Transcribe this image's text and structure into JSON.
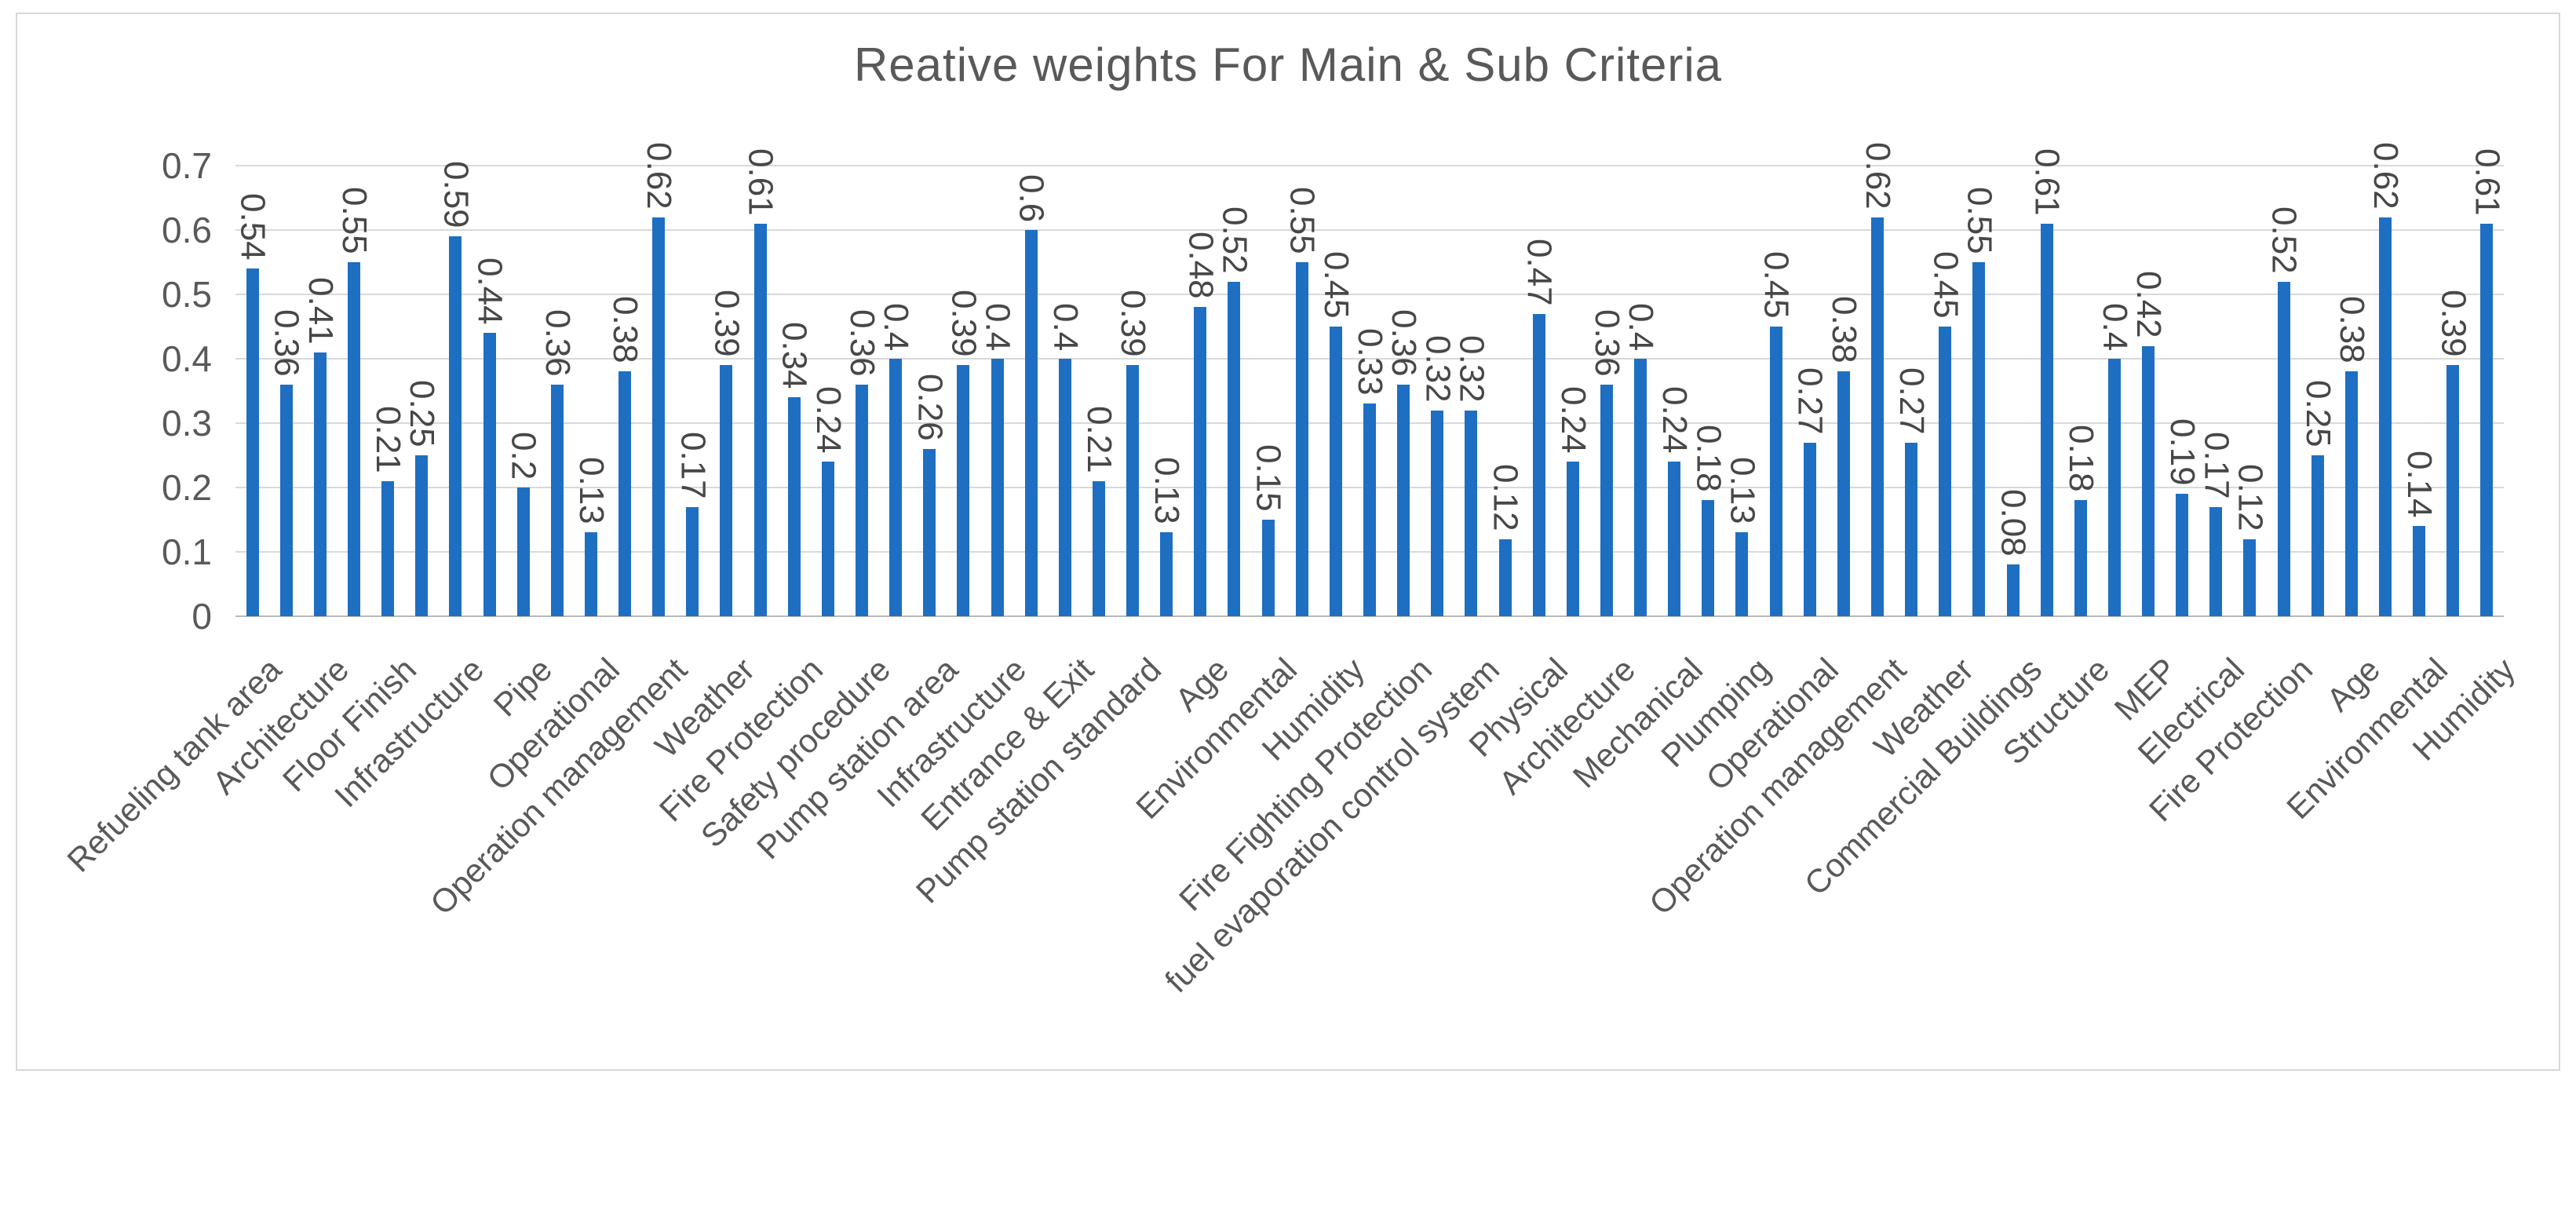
{
  "colors": {
    "bar": "#1e6ec2",
    "grid": "#d9d9d9",
    "axis_line": "#b9b9b9",
    "frame_border": "#d8d8d8",
    "text": "#595959",
    "value_text": "#474747"
  },
  "chart_data": {
    "type": "bar",
    "title": "Reative weights For Main & Sub Criteria",
    "xlabel": "",
    "ylabel": "",
    "ylim": [
      0,
      0.7
    ],
    "ytick_labels": [
      "0",
      "0.1",
      "0.2",
      "0.3",
      "0.4",
      "0.5",
      "0.6",
      "0.7"
    ],
    "grid": true,
    "legend": false,
    "values": [
      0.54,
      0.36,
      0.41,
      0.55,
      0.21,
      0.25,
      0.59,
      0.44,
      0.2,
      0.36,
      0.13,
      0.38,
      0.62,
      0.17,
      0.39,
      0.61,
      0.34,
      0.24,
      0.36,
      0.4,
      0.26,
      0.39,
      0.4,
      0.6,
      0.4,
      0.21,
      0.39,
      0.13,
      0.48,
      0.52,
      0.15,
      0.55,
      0.45,
      0.33,
      0.36,
      0.32,
      0.32,
      0.12,
      0.47,
      0.24,
      0.36,
      0.4,
      0.24,
      0.18,
      0.13,
      0.45,
      0.27,
      0.38,
      0.62,
      0.27,
      0.45,
      0.55,
      0.08,
      0.61,
      0.18,
      0.4,
      0.42,
      0.19,
      0.17,
      0.12,
      0.52,
      0.25,
      0.38,
      0.62,
      0.14,
      0.39,
      0.61
    ],
    "categories": [
      "Refueling tank area",
      "Architecture",
      "Floor Finish",
      "Infrastructure",
      "Pipe",
      "Operational",
      "Operation management",
      "Weather",
      "Fire Protection",
      "Safety procedure",
      "Pump station area",
      "Infrastructure",
      "Entrance & Exit",
      "Pump station standard",
      "Age",
      "Environmental",
      "Humidity",
      "Fire Fighting Protection",
      "fuel evaporation control system",
      "Physical",
      "Architecture",
      "Mechanical",
      "Plumping",
      "Operational",
      "Operation management",
      "Weather",
      "Commercial Buildings",
      "Structure",
      "MEP",
      "Electrical",
      "Fire Protection",
      "Age",
      "Environmental",
      "Humidity"
    ],
    "category_label_every_nth_bar": 2
  }
}
